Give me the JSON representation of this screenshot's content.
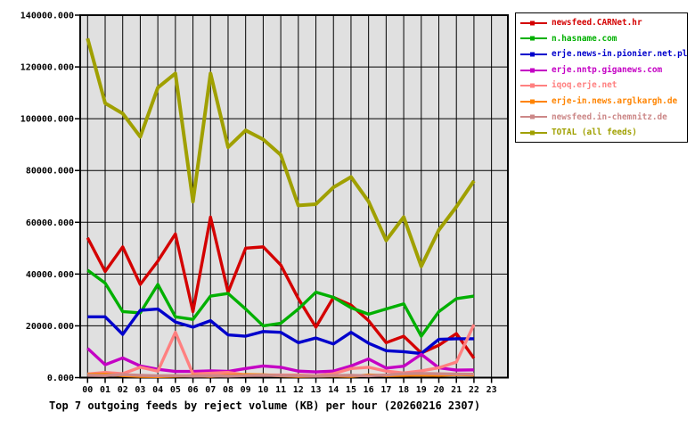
{
  "chart_data": {
    "type": "line",
    "title": "Top 7 outgoing feeds by reject volume (KB) per hour (20260216 2307)",
    "xlabel": "",
    "ylabel": "",
    "ylim": [
      0,
      140000
    ],
    "grid": true,
    "plot_bg": "#e0e0e0",
    "grid_color": "#000000",
    "frame_color": "#000000",
    "legend_position": "outside-top-right",
    "x_tick_labels": [
      "00",
      "01",
      "02",
      "03",
      "04",
      "05",
      "06",
      "07",
      "08",
      "09",
      "10",
      "11",
      "12",
      "13",
      "14",
      "15",
      "16",
      "17",
      "18",
      "19",
      "20",
      "21",
      "22",
      "23"
    ],
    "y_tick_labels": [
      "0.000",
      "20000.000",
      "40000.000",
      "60000.000",
      "80000.000",
      "100000.000",
      "120000.000",
      "140000.000"
    ],
    "y_tick_values": [
      0,
      20000,
      40000,
      60000,
      80000,
      100000,
      120000,
      140000
    ],
    "hours_with_data": [
      0,
      1,
      2,
      3,
      4,
      5,
      6,
      7,
      8,
      9,
      10,
      11,
      12,
      13,
      14,
      15,
      16,
      17,
      18,
      19,
      20,
      21,
      22
    ],
    "series": [
      {
        "name": "newsfeed.CARNet.hr",
        "color": "#d40000",
        "values": [
          54000,
          41000,
          50500,
          36000,
          45000,
          55500,
          25500,
          62000,
          33000,
          50000,
          50500,
          43500,
          30500,
          19500,
          31000,
          28000,
          22000,
          13500,
          16000,
          9500,
          12500,
          17000,
          7500
        ]
      },
      {
        "name": "n.hasname.com",
        "color": "#00b000",
        "values": [
          41500,
          36500,
          25500,
          25000,
          36000,
          23500,
          22500,
          31500,
          32500,
          26500,
          20000,
          21000,
          26500,
          33000,
          31000,
          27000,
          24500,
          26500,
          28500,
          16000,
          25500,
          30500,
          31500
        ]
      },
      {
        "name": "erje.news-in.pionier.net.pl",
        "color": "#0000cc",
        "values": [
          23500,
          23500,
          16700,
          26000,
          26500,
          21500,
          19500,
          22000,
          16500,
          16000,
          17800,
          17500,
          13500,
          15300,
          13000,
          17500,
          13300,
          10400,
          10000,
          9300,
          14800,
          15000,
          15000
        ]
      },
      {
        "name": "erje.nntp.giganews.com",
        "color": "#c400c4",
        "values": [
          11300,
          5000,
          7600,
          4500,
          3200,
          2400,
          2400,
          2600,
          2400,
          3500,
          4500,
          4000,
          2500,
          2200,
          2500,
          4500,
          7200,
          3700,
          4400,
          9000,
          3800,
          2900,
          3000
        ]
      },
      {
        "name": "iqoq.erje.net",
        "color": "#ff8080",
        "values": [
          1400,
          2000,
          1500,
          4000,
          2500,
          17500,
          1400,
          1700,
          2000,
          1000,
          1000,
          1000,
          1000,
          700,
          1500,
          3500,
          4000,
          2500,
          1800,
          2600,
          3800,
          6000,
          20500
        ]
      },
      {
        "name": "erje-in.news.arglkargh.de",
        "color": "#ff8400",
        "values": [
          1200,
          1300,
          800,
          500,
          400,
          600,
          800,
          500,
          900,
          1200,
          1100,
          700,
          500,
          600,
          700,
          500,
          1000,
          800,
          900,
          1000,
          900,
          1200,
          1000
        ]
      },
      {
        "name": "newsfeed.in-chemnitz.de",
        "color": "#cc8888",
        "values": [
          900,
          800,
          1200,
          900,
          700,
          800,
          600,
          700,
          600,
          800,
          900,
          800,
          700,
          600,
          800,
          900,
          700,
          1000,
          1500,
          1600,
          1500,
          1400,
          1300
        ]
      },
      {
        "name": "TOTAL (all feeds)",
        "color": "#a0a000",
        "values": [
          131000,
          106000,
          102000,
          93000,
          112000,
          117500,
          68000,
          117500,
          89000,
          95500,
          92000,
          86000,
          66500,
          67000,
          73500,
          77500,
          68000,
          53000,
          62000,
          43000,
          57000,
          66000,
          76000
        ]
      }
    ]
  }
}
